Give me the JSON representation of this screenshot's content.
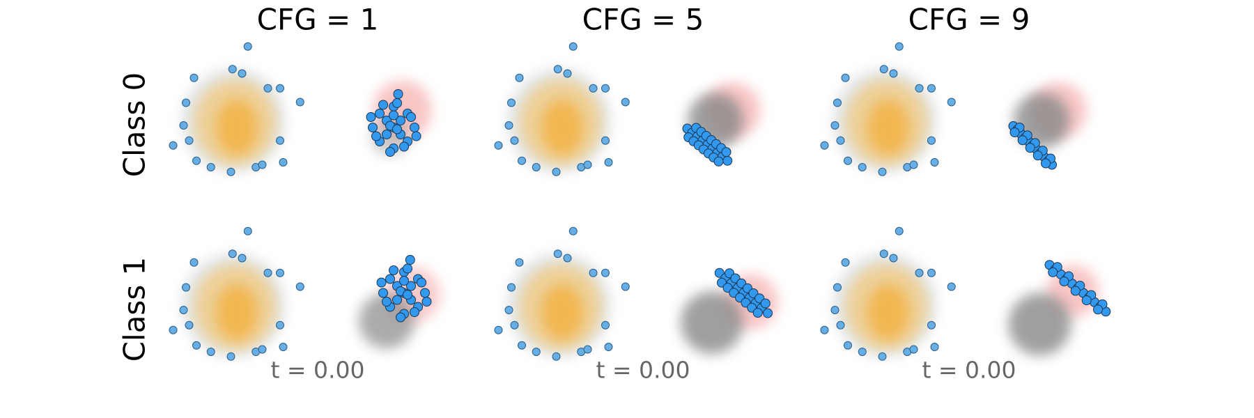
{
  "columns": [
    "CFG = 1",
    "CFG = 5",
    "CFG = 9"
  ],
  "rows": [
    "Class 0",
    "Class 1"
  ],
  "time_label": "t = 0.00",
  "source_points": {
    "color": "#66aee3",
    "x": [
      0.83,
      -0.05,
      0.5,
      -2.26,
      1.98,
      2.68,
      3.83,
      -2.72,
      -2.86,
      -2.54,
      -3.46,
      2.68,
      2.86,
      -1.29,
      -0.14,
      1.29,
      1.66,
      -2.12
    ],
    "y": [
      4.25,
      2.95,
      2.7,
      2.45,
      1.85,
      1.85,
      1.06,
      1.02,
      -0.28,
      -1.15,
      -1.43,
      -1.15,
      -2.4,
      -2.68,
      -2.95,
      -2.68,
      -2.54,
      -2.31
    ]
  },
  "chart_data": [
    {
      "type": "scatter",
      "color": "#3399ee",
      "xlim": [
        -4.6,
        13.2
      ],
      "ylim": [
        -3.6,
        4.4
      ],
      "x": [
        9.2,
        8.0,
        10.4,
        9.2,
        9.2,
        8.4,
        10.0,
        8.4,
        10.0,
        8.8,
        9.6,
        8.8,
        9.6,
        7.9,
        10.5,
        9.2,
        8.6,
        9.8,
        8.2,
        10.2,
        9.0,
        9.4,
        9.0,
        9.4,
        9.46
      ],
      "y": [
        -0.4,
        -0.4,
        -0.4,
        0.8,
        -1.6,
        0.4,
        0.4,
        -1.2,
        -1.2,
        0.0,
        0.0,
        -0.8,
        -0.8,
        0.2,
        -0.9,
        0.3,
        0.9,
        -1.5,
        -0.9,
        0.2,
        -1.8,
        1.0,
        -0.3,
        -0.5,
        1.52
      ]
    },
    {
      "type": "scatter",
      "color": "#3399ee",
      "xlim": [
        -4.6,
        13.2
      ],
      "ylim": [
        -3.6,
        4.4
      ],
      "x": [
        7.38,
        7.67,
        7.96,
        8.25,
        8.54,
        8.82,
        9.11,
        9.4,
        9.69,
        7.89,
        8.18,
        8.47,
        8.76,
        9.04,
        9.33,
        9.62,
        7.45,
        7.74,
        8.03,
        8.32,
        8.6,
        8.89,
        9.18
      ],
      "y": [
        -0.46,
        -0.69,
        -0.92,
        -1.15,
        -1.39,
        -1.62,
        -1.85,
        -2.08,
        -2.31,
        -0.42,
        -0.65,
        -0.88,
        -1.12,
        -1.35,
        -1.58,
        -1.81,
        -0.96,
        -1.19,
        -1.42,
        -1.66,
        -1.89,
        -2.12,
        -2.35
      ]
    },
    {
      "type": "scatter",
      "color": "#3399ee",
      "xlim": [
        -4.6,
        13.2
      ],
      "ylim": [
        -3.6,
        4.4
      ],
      "x": [
        7.38,
        7.6,
        7.82,
        8.05,
        8.27,
        8.49,
        8.71,
        8.93,
        9.16,
        9.38,
        9.6,
        7.74,
        8.19,
        8.63,
        9.07,
        9.52,
        7.46,
        7.91,
        8.35,
        8.79,
        9.24
      ],
      "y": [
        -0.32,
        -0.54,
        -0.76,
        -0.99,
        -1.21,
        -1.43,
        -1.65,
        -1.87,
        -2.1,
        -2.32,
        -2.54,
        -0.4,
        -0.85,
        -1.29,
        -1.73,
        -2.18,
        -0.68,
        -1.13,
        -1.57,
        -2.01,
        -2.46
      ]
    },
    {
      "type": "scatter",
      "color": "#3399ee",
      "xlim": [
        -4.6,
        13.2
      ],
      "ylim": [
        -3.6,
        4.4
      ],
      "x": [
        9.8,
        8.6,
        11.0,
        9.8,
        9.8,
        9.0,
        10.6,
        9.0,
        10.6,
        9.4,
        10.2,
        9.4,
        10.2,
        8.5,
        11.1,
        9.8,
        9.2,
        10.4,
        8.8,
        10.8,
        9.6,
        10.0,
        9.6,
        10.0,
        10.15
      ],
      "y": [
        0.7,
        0.7,
        0.7,
        1.9,
        -0.5,
        1.5,
        1.5,
        -0.1,
        -0.1,
        1.1,
        1.1,
        0.3,
        0.3,
        1.3,
        0.2,
        1.4,
        2.0,
        -0.4,
        0.2,
        1.3,
        -0.7,
        2.1,
        0.8,
        0.6,
        2.6
      ]
    },
    {
      "type": "scatter",
      "color": "#3399ee",
      "xlim": [
        -4.6,
        13.2
      ],
      "ylim": [
        -3.6,
        4.4
      ],
      "x": [
        9.23,
        9.58,
        9.92,
        10.27,
        10.62,
        10.96,
        11.31,
        11.65,
        12.0,
        9.8,
        10.14,
        10.49,
        10.84,
        11.18,
        11.53,
        11.87,
        9.36,
        9.7,
        10.05,
        10.4,
        10.74,
        11.09,
        11.43
      ],
      "y": [
        1.85,
        1.56,
        1.27,
        0.98,
        0.7,
        0.41,
        0.12,
        -0.17,
        -0.46,
        1.83,
        1.54,
        1.25,
        0.97,
        0.68,
        0.39,
        0.1,
        1.29,
        1.0,
        0.71,
        0.43,
        0.14,
        -0.15,
        -0.44
      ]
    },
    {
      "type": "scatter",
      "color": "#3399ee",
      "xlim": [
        -4.6,
        13.2
      ],
      "ylim": [
        -3.6,
        4.4
      ],
      "x": [
        9.46,
        9.78,
        10.11,
        10.43,
        10.75,
        11.08,
        11.4,
        11.72,
        12.04,
        12.37,
        12.69,
        9.91,
        10.56,
        11.21,
        11.85,
        12.5,
        9.65,
        10.3,
        10.95,
        11.59,
        12.24
      ],
      "y": [
        2.31,
        2.04,
        1.77,
        1.51,
        1.24,
        0.97,
        0.7,
        0.43,
        0.17,
        -0.1,
        -0.37,
        2.19,
        1.66,
        1.12,
        0.58,
        0.05,
        1.89,
        1.36,
        0.82,
        0.28,
        -0.25
      ]
    }
  ]
}
